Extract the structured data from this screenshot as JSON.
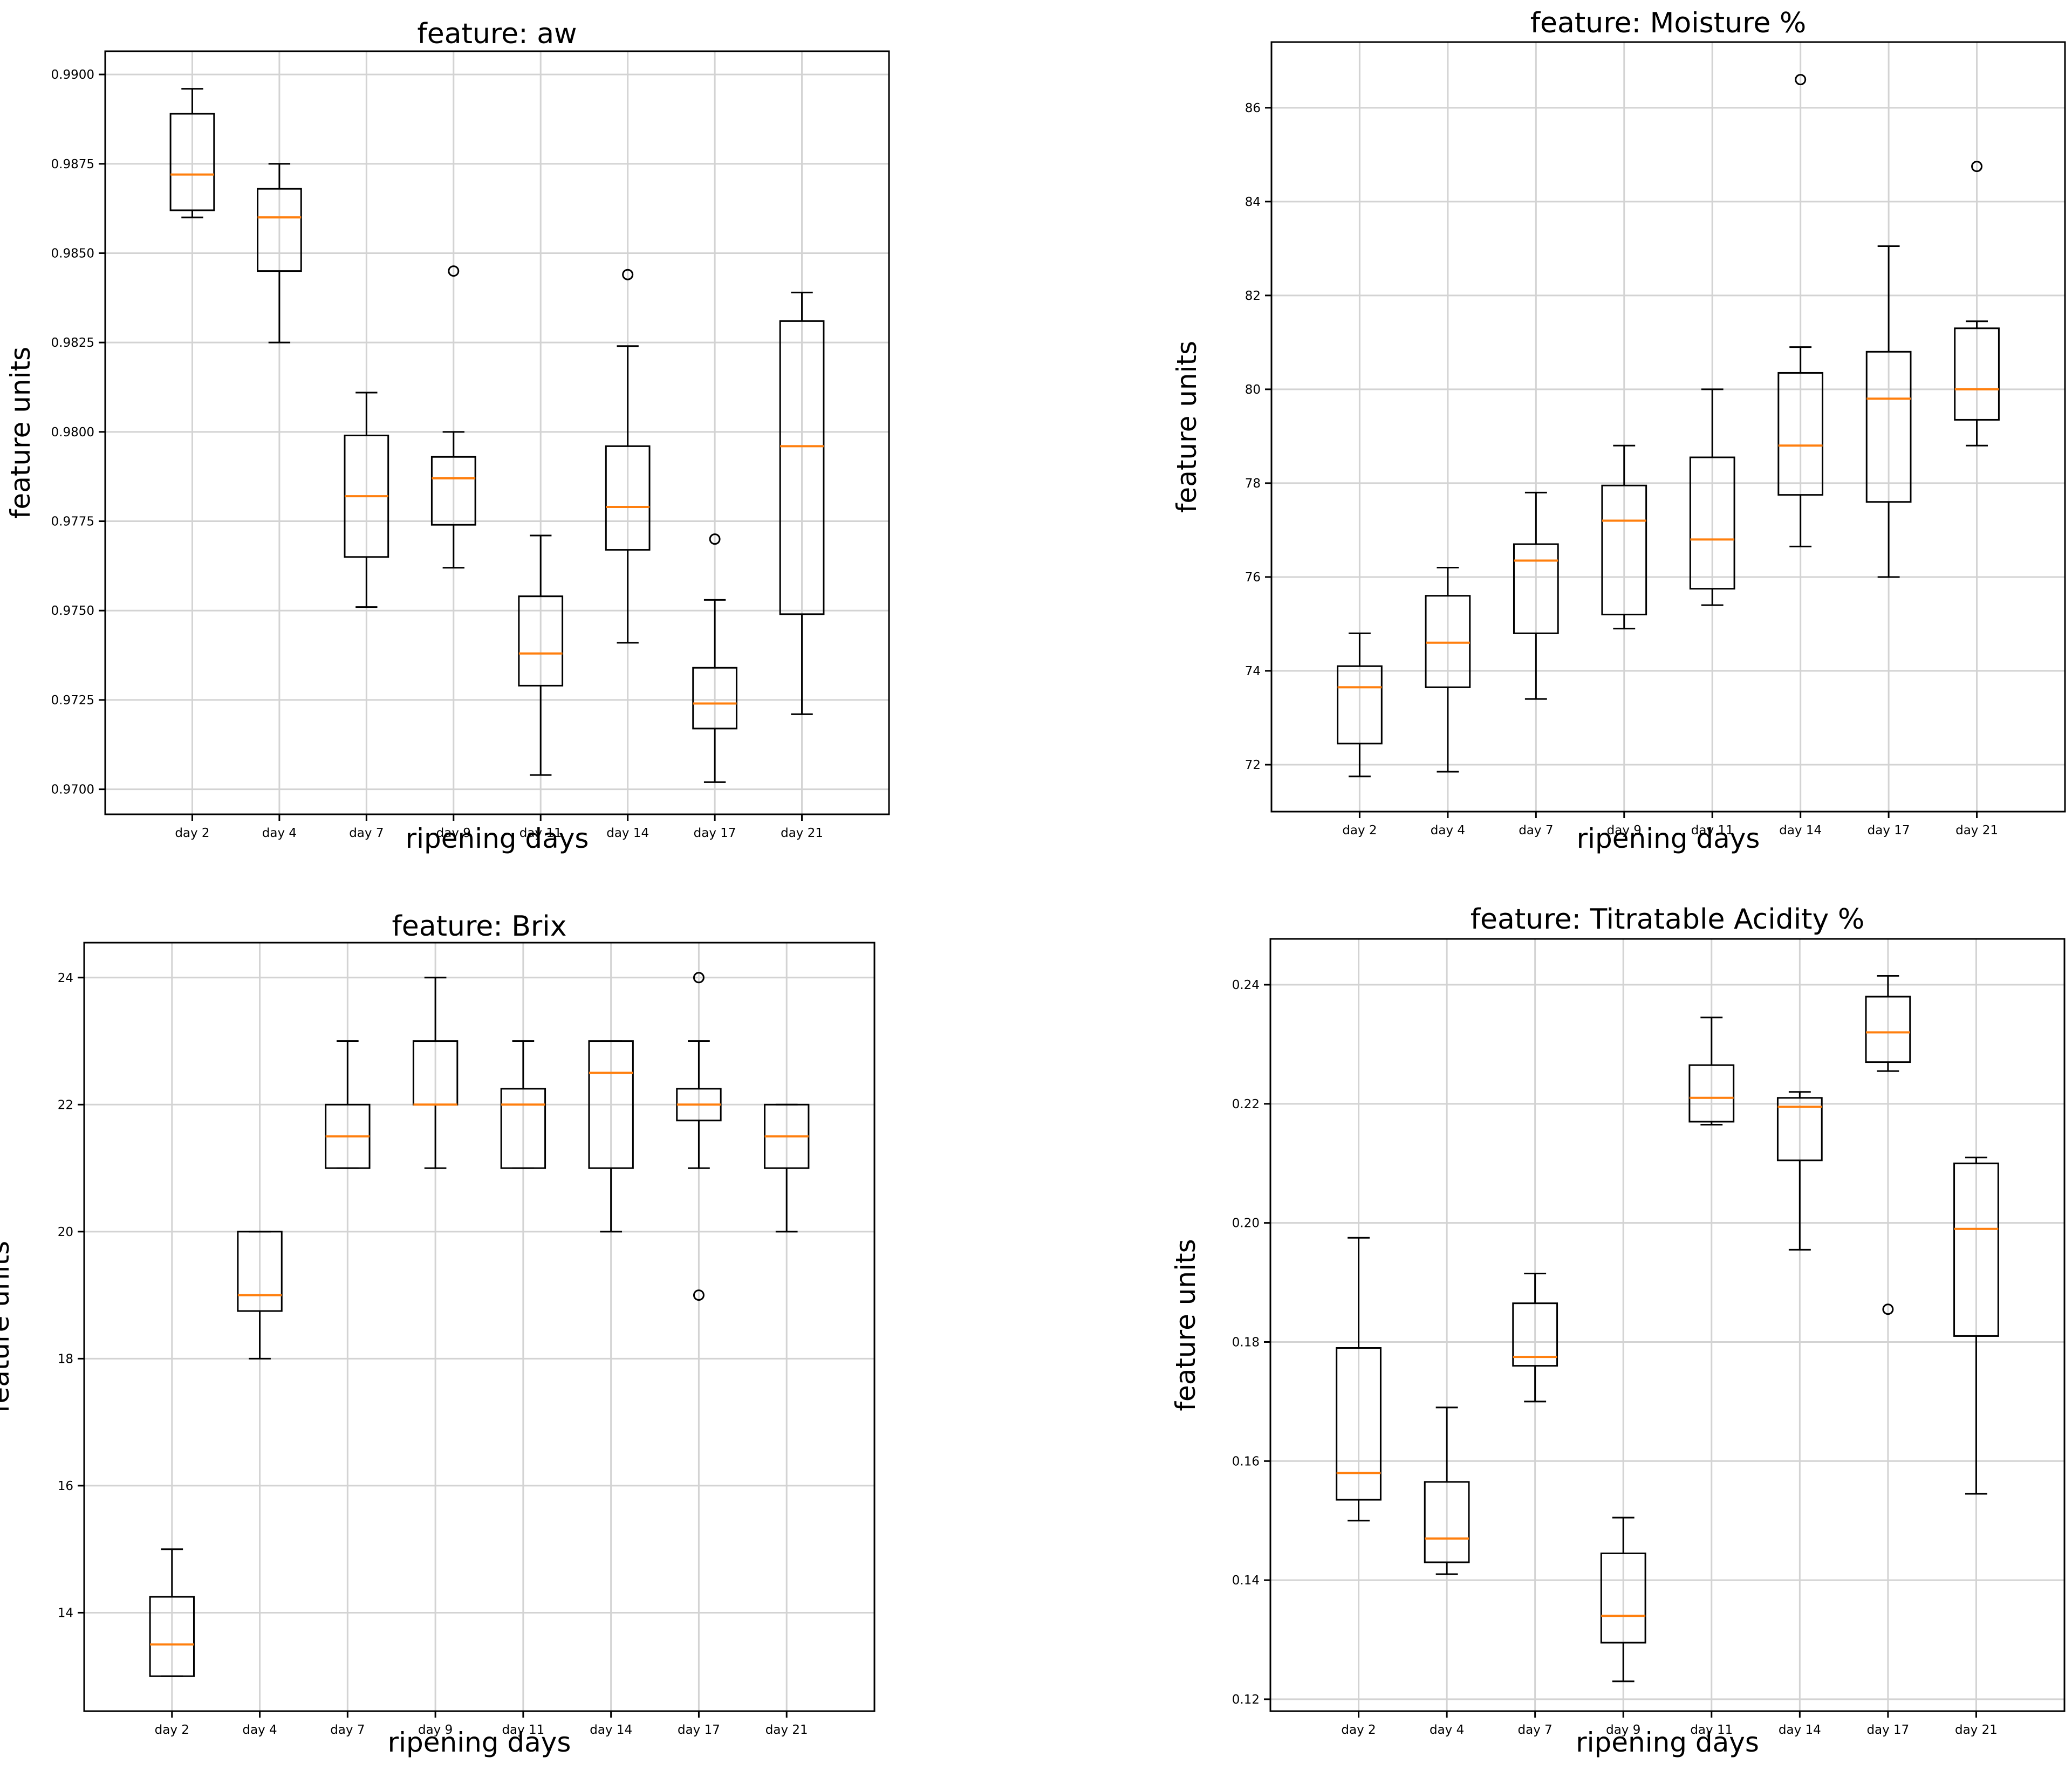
{
  "chart_data": [
    {
      "type": "box",
      "title": "feature: aw",
      "xlabel": "ripening days",
      "ylabel": "feature units",
      "categories": [
        "day 2",
        "day 4",
        "day 7",
        "day 9",
        "day 11",
        "day 14",
        "day 17",
        "day 21"
      ],
      "ylim": [
        0.9693,
        0.99065
      ],
      "yticks": [
        0.97,
        0.9725,
        0.975,
        0.9775,
        0.98,
        0.9825,
        0.985,
        0.9875,
        0.99
      ],
      "ytick_labels": [
        "0.9700",
        "0.9725",
        "0.9750",
        "0.9775",
        "0.9800",
        "0.9825",
        "0.9850",
        "0.9875",
        "0.9900"
      ],
      "grid": true,
      "boxes": [
        {
          "wlo": 0.986,
          "q1": 0.9862,
          "med": 0.9872,
          "q3": 0.9889,
          "whi": 0.9896,
          "fliers": []
        },
        {
          "wlo": 0.9825,
          "q1": 0.9845,
          "med": 0.986,
          "q3": 0.9868,
          "whi": 0.9875,
          "fliers": []
        },
        {
          "wlo": 0.9751,
          "q1": 0.9765,
          "med": 0.9782,
          "q3": 0.9799,
          "whi": 0.9811,
          "fliers": []
        },
        {
          "wlo": 0.9762,
          "q1": 0.9774,
          "med": 0.9787,
          "q3": 0.9793,
          "whi": 0.98,
          "fliers": [
            0.9845
          ]
        },
        {
          "wlo": 0.9704,
          "q1": 0.9729,
          "med": 0.9738,
          "q3": 0.9754,
          "whi": 0.9771,
          "fliers": []
        },
        {
          "wlo": 0.9741,
          "q1": 0.9767,
          "med": 0.9779,
          "q3": 0.9796,
          "whi": 0.9824,
          "fliers": [
            0.9844
          ]
        },
        {
          "wlo": 0.9702,
          "q1": 0.9717,
          "med": 0.9724,
          "q3": 0.9734,
          "whi": 0.9753,
          "fliers": [
            0.977
          ]
        },
        {
          "wlo": 0.9721,
          "q1": 0.9749,
          "med": 0.9796,
          "q3": 0.9831,
          "whi": 0.9839,
          "fliers": []
        }
      ]
    },
    {
      "type": "box",
      "title": "feature: Moisture %",
      "xlabel": "ripening days",
      "ylabel": "feature units",
      "categories": [
        "day 2",
        "day 4",
        "day 7",
        "day 9",
        "day 11",
        "day 14",
        "day 17",
        "day 21"
      ],
      "ylim": [
        71.0,
        87.4
      ],
      "yticks": [
        72,
        74,
        76,
        78,
        80,
        82,
        84,
        86
      ],
      "ytick_labels": [
        "72",
        "74",
        "76",
        "78",
        "80",
        "82",
        "84",
        "86"
      ],
      "grid": true,
      "boxes": [
        {
          "wlo": 71.75,
          "q1": 72.45,
          "med": 73.65,
          "q3": 74.1,
          "whi": 74.8,
          "fliers": []
        },
        {
          "wlo": 71.85,
          "q1": 73.65,
          "med": 74.6,
          "q3": 75.6,
          "whi": 76.2,
          "fliers": []
        },
        {
          "wlo": 73.4,
          "q1": 74.8,
          "med": 76.35,
          "q3": 76.7,
          "whi": 77.8,
          "fliers": []
        },
        {
          "wlo": 74.9,
          "q1": 75.2,
          "med": 77.2,
          "q3": 77.95,
          "whi": 78.8,
          "fliers": []
        },
        {
          "wlo": 75.4,
          "q1": 75.75,
          "med": 76.8,
          "q3": 78.55,
          "whi": 80.0,
          "fliers": []
        },
        {
          "wlo": 76.65,
          "q1": 77.75,
          "med": 78.8,
          "q3": 80.35,
          "whi": 80.9,
          "fliers": [
            86.6
          ]
        },
        {
          "wlo": 76.0,
          "q1": 77.6,
          "med": 79.8,
          "q3": 80.8,
          "whi": 83.05,
          "fliers": []
        },
        {
          "wlo": 78.8,
          "q1": 79.35,
          "med": 80.0,
          "q3": 81.3,
          "whi": 81.45,
          "fliers": [
            84.75
          ]
        }
      ]
    },
    {
      "type": "box",
      "title": "feature: Brix",
      "xlabel": "ripening days",
      "ylabel": "feature units",
      "categories": [
        "day 2",
        "day 4",
        "day 7",
        "day 9",
        "day 11",
        "day 14",
        "day 17",
        "day 21"
      ],
      "ylim": [
        12.45,
        24.55
      ],
      "yticks": [
        14,
        16,
        18,
        20,
        22,
        24
      ],
      "ytick_labels": [
        "14",
        "16",
        "18",
        "20",
        "22",
        "24"
      ],
      "grid": true,
      "boxes": [
        {
          "wlo": 13,
          "q1": 13,
          "med": 13.5,
          "q3": 14.25,
          "whi": 15,
          "fliers": []
        },
        {
          "wlo": 18,
          "q1": 18.75,
          "med": 19,
          "q3": 20,
          "whi": 20,
          "fliers": []
        },
        {
          "wlo": 21,
          "q1": 21,
          "med": 21.5,
          "q3": 22,
          "whi": 23,
          "fliers": []
        },
        {
          "wlo": 21,
          "q1": 22,
          "med": 22,
          "q3": 23,
          "whi": 24,
          "fliers": []
        },
        {
          "wlo": 21,
          "q1": 21,
          "med": 22,
          "q3": 22.25,
          "whi": 23,
          "fliers": []
        },
        {
          "wlo": 20,
          "q1": 21,
          "med": 22.5,
          "q3": 23,
          "whi": 23,
          "fliers": []
        },
        {
          "wlo": 21,
          "q1": 21.75,
          "med": 22,
          "q3": 22.25,
          "whi": 23,
          "fliers": [
            24,
            19
          ]
        },
        {
          "wlo": 20,
          "q1": 21,
          "med": 21.5,
          "q3": 22,
          "whi": 22,
          "fliers": []
        }
      ]
    },
    {
      "type": "box",
      "title": "feature: Titratable Acidity %",
      "xlabel": "ripening days",
      "ylabel": "feature units",
      "categories": [
        "day 2",
        "day 4",
        "day 7",
        "day 9",
        "day 11",
        "day 14",
        "day 17",
        "day 21"
      ],
      "ylim": [
        0.118,
        0.2477
      ],
      "yticks": [
        0.12,
        0.14,
        0.16,
        0.18,
        0.2,
        0.22,
        0.24
      ],
      "ytick_labels": [
        "0.12",
        "0.14",
        "0.16",
        "0.18",
        "0.20",
        "0.22",
        "0.24"
      ],
      "grid": true,
      "boxes": [
        {
          "wlo": 0.15,
          "q1": 0.1535,
          "med": 0.158,
          "q3": 0.179,
          "whi": 0.1975,
          "fliers": []
        },
        {
          "wlo": 0.141,
          "q1": 0.143,
          "med": 0.147,
          "q3": 0.1565,
          "whi": 0.169,
          "fliers": []
        },
        {
          "wlo": 0.17,
          "q1": 0.176,
          "med": 0.1775,
          "q3": 0.1865,
          "whi": 0.1915,
          "fliers": []
        },
        {
          "wlo": 0.123,
          "q1": 0.1295,
          "med": 0.134,
          "q3": 0.1445,
          "whi": 0.1505,
          "fliers": []
        },
        {
          "wlo": 0.2165,
          "q1": 0.217,
          "med": 0.221,
          "q3": 0.2265,
          "whi": 0.2345,
          "fliers": []
        },
        {
          "wlo": 0.1955,
          "q1": 0.2105,
          "med": 0.2195,
          "q3": 0.221,
          "whi": 0.222,
          "fliers": []
        },
        {
          "wlo": 0.2255,
          "q1": 0.227,
          "med": 0.232,
          "q3": 0.238,
          "whi": 0.2415,
          "fliers": [
            0.1855
          ]
        },
        {
          "wlo": 0.1545,
          "q1": 0.181,
          "med": 0.199,
          "q3": 0.21,
          "whi": 0.211,
          "fliers": []
        }
      ]
    }
  ],
  "colors": {
    "box": "#000000",
    "median": "#ff7f0e",
    "grid": "#d3d3d3"
  }
}
